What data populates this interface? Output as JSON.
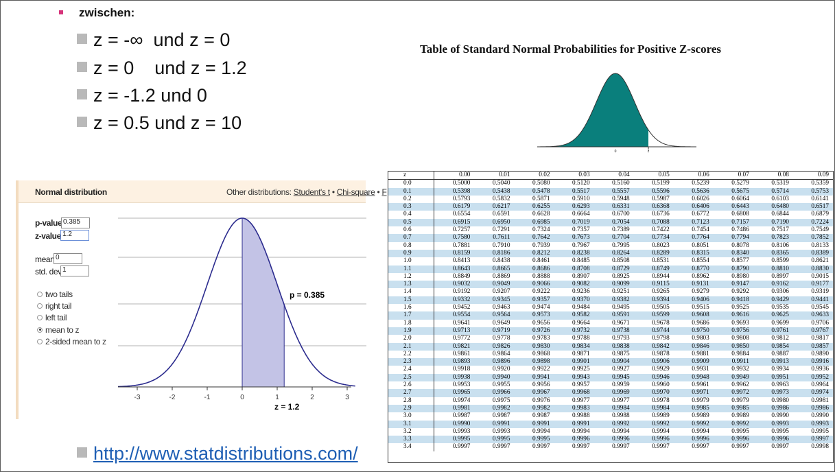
{
  "slide": {
    "bullet_heading": "zwischen:",
    "items": [
      "z = -∞  und z = 0",
      "z = 0    und z = 1.2",
      "z = -1.2 und 0",
      "z = 0.5 und z = 10"
    ],
    "link": "http://www.statdistributions.com/",
    "accent_color": "#d6337a"
  },
  "calculator": {
    "title": "Normal distribution",
    "other_label": "Other distributions:",
    "other_links": [
      "Student's t",
      "Chi-square",
      "F"
    ],
    "separator": "•",
    "p_label": "p-value:",
    "p_value": "0.385",
    "z_label": "z-value:",
    "z_value": "1.2",
    "mean_label": "mean:",
    "mean_value": "0",
    "sd_label": "std. dev:",
    "sd_value": "1",
    "options": [
      {
        "label": "two tails",
        "checked": false
      },
      {
        "label": "right tail",
        "checked": false
      },
      {
        "label": "left tail",
        "checked": false
      },
      {
        "label": "mean to z",
        "checked": true
      },
      {
        "label": "2-sided mean to z",
        "checked": false
      }
    ],
    "plot": {
      "p_annotation": "p = 0.385",
      "z_annotation": "z = 1.2",
      "x_ticks": [
        "-3",
        "-2",
        "-1",
        "0",
        "1",
        "2",
        "3"
      ],
      "shade_from": 0,
      "shade_to": 1.2,
      "fill_color": "#c3c3e6",
      "line_color": "#2c2c8e"
    }
  },
  "ztable": {
    "title": "Table of Standard Normal Probabilities for Positive Z-scores",
    "curve_color": "#0a7f7c",
    "small_labels": [
      "0",
      "z"
    ],
    "header": [
      "z",
      "0.00",
      "0.01",
      "0.02",
      "0.03",
      "0.04",
      "0.05",
      "0.06",
      "0.07",
      "0.08",
      "0.09"
    ],
    "rows": [
      [
        "0.0",
        "0.5000",
        "0.5040",
        "0.5080",
        "0.5120",
        "0.5160",
        "0.5199",
        "0.5239",
        "0.5279",
        "0.5319",
        "0.5359"
      ],
      [
        "0.1",
        "0.5398",
        "0.5438",
        "0.5478",
        "0.5517",
        "0.5557",
        "0.5596",
        "0.5636",
        "0.5675",
        "0.5714",
        "0.5753"
      ],
      [
        "0.2",
        "0.5793",
        "0.5832",
        "0.5871",
        "0.5910",
        "0.5948",
        "0.5987",
        "0.6026",
        "0.6064",
        "0.6103",
        "0.6141"
      ],
      [
        "0.3",
        "0.6179",
        "0.6217",
        "0.6255",
        "0.6293",
        "0.6331",
        "0.6368",
        "0.6406",
        "0.6443",
        "0.6480",
        "0.6517"
      ],
      [
        "0.4",
        "0.6554",
        "0.6591",
        "0.6628",
        "0.6664",
        "0.6700",
        "0.6736",
        "0.6772",
        "0.6808",
        "0.6844",
        "0.6879"
      ],
      [
        "0.5",
        "0.6915",
        "0.6950",
        "0.6985",
        "0.7019",
        "0.7054",
        "0.7088",
        "0.7123",
        "0.7157",
        "0.7190",
        "0.7224"
      ],
      [
        "0.6",
        "0.7257",
        "0.7291",
        "0.7324",
        "0.7357",
        "0.7389",
        "0.7422",
        "0.7454",
        "0.7486",
        "0.7517",
        "0.7549"
      ],
      [
        "0.7",
        "0.7580",
        "0.7611",
        "0.7642",
        "0.7673",
        "0.7704",
        "0.7734",
        "0.7764",
        "0.7794",
        "0.7823",
        "0.7852"
      ],
      [
        "0.8",
        "0.7881",
        "0.7910",
        "0.7939",
        "0.7967",
        "0.7995",
        "0.8023",
        "0.8051",
        "0.8078",
        "0.8106",
        "0.8133"
      ],
      [
        "0.9",
        "0.8159",
        "0.8186",
        "0.8212",
        "0.8238",
        "0.8264",
        "0.8289",
        "0.8315",
        "0.8340",
        "0.8365",
        "0.8389"
      ],
      [
        "1.0",
        "0.8413",
        "0.8438",
        "0.8461",
        "0.8485",
        "0.8508",
        "0.8531",
        "0.8554",
        "0.8577",
        "0.8599",
        "0.8621"
      ],
      [
        "1.1",
        "0.8643",
        "0.8665",
        "0.8686",
        "0.8708",
        "0.8729",
        "0.8749",
        "0.8770",
        "0.8790",
        "0.8810",
        "0.8830"
      ],
      [
        "1.2",
        "0.8849",
        "0.8869",
        "0.8888",
        "0.8907",
        "0.8925",
        "0.8944",
        "0.8962",
        "0.8980",
        "0.8997",
        "0.9015"
      ],
      [
        "1.3",
        "0.9032",
        "0.9049",
        "0.9066",
        "0.9082",
        "0.9099",
        "0.9115",
        "0.9131",
        "0.9147",
        "0.9162",
        "0.9177"
      ],
      [
        "1.4",
        "0.9192",
        "0.9207",
        "0.9222",
        "0.9236",
        "0.9251",
        "0.9265",
        "0.9279",
        "0.9292",
        "0.9306",
        "0.9319"
      ],
      [
        "1.5",
        "0.9332",
        "0.9345",
        "0.9357",
        "0.9370",
        "0.9382",
        "0.9394",
        "0.9406",
        "0.9418",
        "0.9429",
        "0.9441"
      ],
      [
        "1.6",
        "0.9452",
        "0.9463",
        "0.9474",
        "0.9484",
        "0.9495",
        "0.9505",
        "0.9515",
        "0.9525",
        "0.9535",
        "0.9545"
      ],
      [
        "1.7",
        "0.9554",
        "0.9564",
        "0.9573",
        "0.9582",
        "0.9591",
        "0.9599",
        "0.9608",
        "0.9616",
        "0.9625",
        "0.9633"
      ],
      [
        "1.8",
        "0.9641",
        "0.9649",
        "0.9656",
        "0.9664",
        "0.9671",
        "0.9678",
        "0.9686",
        "0.9693",
        "0.9699",
        "0.9706"
      ],
      [
        "1.9",
        "0.9713",
        "0.9719",
        "0.9726",
        "0.9732",
        "0.9738",
        "0.9744",
        "0.9750",
        "0.9756",
        "0.9761",
        "0.9767"
      ],
      [
        "2.0",
        "0.9772",
        "0.9778",
        "0.9783",
        "0.9788",
        "0.9793",
        "0.9798",
        "0.9803",
        "0.9808",
        "0.9812",
        "0.9817"
      ],
      [
        "2.1",
        "0.9821",
        "0.9826",
        "0.9830",
        "0.9834",
        "0.9838",
        "0.9842",
        "0.9846",
        "0.9850",
        "0.9854",
        "0.9857"
      ],
      [
        "2.2",
        "0.9861",
        "0.9864",
        "0.9868",
        "0.9871",
        "0.9875",
        "0.9878",
        "0.9881",
        "0.9884",
        "0.9887",
        "0.9890"
      ],
      [
        "2.3",
        "0.9893",
        "0.9896",
        "0.9898",
        "0.9901",
        "0.9904",
        "0.9906",
        "0.9909",
        "0.9911",
        "0.9913",
        "0.9916"
      ],
      [
        "2.4",
        "0.9918",
        "0.9920",
        "0.9922",
        "0.9925",
        "0.9927",
        "0.9929",
        "0.9931",
        "0.9932",
        "0.9934",
        "0.9936"
      ],
      [
        "2.5",
        "0.9938",
        "0.9940",
        "0.9941",
        "0.9943",
        "0.9945",
        "0.9946",
        "0.9948",
        "0.9949",
        "0.9951",
        "0.9952"
      ],
      [
        "2.6",
        "0.9953",
        "0.9955",
        "0.9956",
        "0.9957",
        "0.9959",
        "0.9960",
        "0.9961",
        "0.9962",
        "0.9963",
        "0.9964"
      ],
      [
        "2.7",
        "0.9965",
        "0.9966",
        "0.9967",
        "0.9968",
        "0.9969",
        "0.9970",
        "0.9971",
        "0.9972",
        "0.9973",
        "0.9974"
      ],
      [
        "2.8",
        "0.9974",
        "0.9975",
        "0.9976",
        "0.9977",
        "0.9977",
        "0.9978",
        "0.9979",
        "0.9979",
        "0.9980",
        "0.9981"
      ],
      [
        "2.9",
        "0.9981",
        "0.9982",
        "0.9982",
        "0.9983",
        "0.9984",
        "0.9984",
        "0.9985",
        "0.9985",
        "0.9986",
        "0.9986"
      ],
      [
        "3.0",
        "0.9987",
        "0.9987",
        "0.9987",
        "0.9988",
        "0.9988",
        "0.9989",
        "0.9989",
        "0.9989",
        "0.9990",
        "0.9990"
      ],
      [
        "3.1",
        "0.9990",
        "0.9991",
        "0.9991",
        "0.9991",
        "0.9992",
        "0.9992",
        "0.9992",
        "0.9992",
        "0.9993",
        "0.9993"
      ],
      [
        "3.2",
        "0.9993",
        "0.9993",
        "0.9994",
        "0.9994",
        "0.9994",
        "0.9994",
        "0.9994",
        "0.9995",
        "0.9995",
        "0.9995"
      ],
      [
        "3.3",
        "0.9995",
        "0.9995",
        "0.9995",
        "0.9996",
        "0.9996",
        "0.9996",
        "0.9996",
        "0.9996",
        "0.9996",
        "0.9997"
      ],
      [
        "3.4",
        "0.9997",
        "0.9997",
        "0.9997",
        "0.9997",
        "0.9997",
        "0.9997",
        "0.9997",
        "0.9997",
        "0.9997",
        "0.9998"
      ]
    ]
  }
}
